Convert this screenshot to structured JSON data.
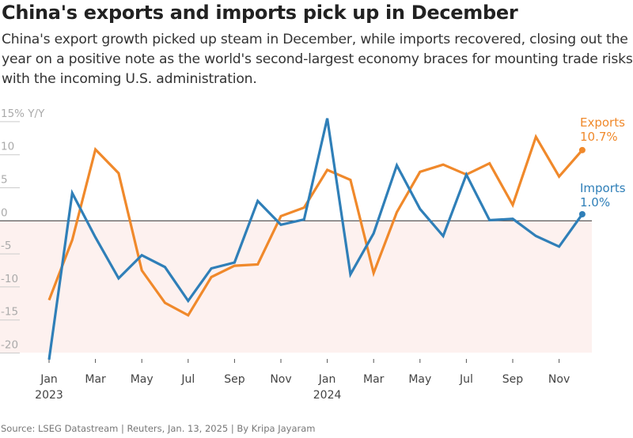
{
  "title": "China's exports and imports pick up in December",
  "subtitle": "China's export growth picked up steam in December, while imports recovered, closing out the year on a positive note as the world's second-largest economy braces for mounting trade risks with the incoming U.S. administration.",
  "source": "Source: LSEG Datastream | Reuters, Jan. 13, 2025 | By Kripa Jayaram",
  "chart_data": {
    "type": "line",
    "ylabel": "15% Y/Y",
    "ylim": [
      -21,
      15.5
    ],
    "y_ticks": [
      "15% Y/Y",
      "10",
      "5",
      "0",
      "-5",
      "-10",
      "-15",
      "-20"
    ],
    "y_tick_values": [
      15,
      10,
      5,
      0,
      -5,
      -10,
      -15,
      -20
    ],
    "negative_region_shaded": true,
    "x": [
      "2023-01",
      "2023-02",
      "2023-03",
      "2023-04",
      "2023-05",
      "2023-06",
      "2023-07",
      "2023-08",
      "2023-09",
      "2023-10",
      "2023-11",
      "2023-12",
      "2024-01",
      "2024-02",
      "2024-03",
      "2024-04",
      "2024-05",
      "2024-06",
      "2024-07",
      "2024-08",
      "2024-09",
      "2024-10",
      "2024-11",
      "2024-12"
    ],
    "x_tick_labels": [
      {
        "month": "Jan",
        "year": "2023",
        "index": 0
      },
      {
        "month": "Mar",
        "year": "",
        "index": 2
      },
      {
        "month": "May",
        "year": "",
        "index": 4
      },
      {
        "month": "Jul",
        "year": "",
        "index": 6
      },
      {
        "month": "Sep",
        "year": "",
        "index": 8
      },
      {
        "month": "Nov",
        "year": "",
        "index": 10
      },
      {
        "month": "Jan",
        "year": "2024",
        "index": 12
      },
      {
        "month": "Mar",
        "year": "",
        "index": 14
      },
      {
        "month": "May",
        "year": "",
        "index": 16
      },
      {
        "month": "Jul",
        "year": "",
        "index": 18
      },
      {
        "month": "Sep",
        "year": "",
        "index": 20
      },
      {
        "month": "Nov",
        "year": "",
        "index": 22
      }
    ],
    "series": [
      {
        "name": "Exports",
        "end_label": "10.7%",
        "color": "#f0892b",
        "values": [
          -12.0,
          -2.9,
          10.8,
          7.2,
          -7.5,
          -12.4,
          -14.3,
          -8.5,
          -6.8,
          -6.6,
          0.7,
          2.0,
          7.7,
          6.2,
          -7.9,
          1.3,
          7.4,
          8.5,
          7.0,
          8.7,
          2.4,
          12.7,
          6.7,
          10.7
        ]
      },
      {
        "name": "Imports",
        "end_label": "1.0%",
        "color": "#2f7fb8",
        "values": [
          -21.0,
          4.2,
          -2.5,
          -8.7,
          -5.2,
          -7.0,
          -12.1,
          -7.2,
          -6.3,
          3.0,
          -0.6,
          0.2,
          15.5,
          -8.1,
          -1.9,
          8.4,
          1.8,
          -2.3,
          7.0,
          0.1,
          0.3,
          -2.3,
          -3.9,
          1.0
        ]
      }
    ]
  }
}
